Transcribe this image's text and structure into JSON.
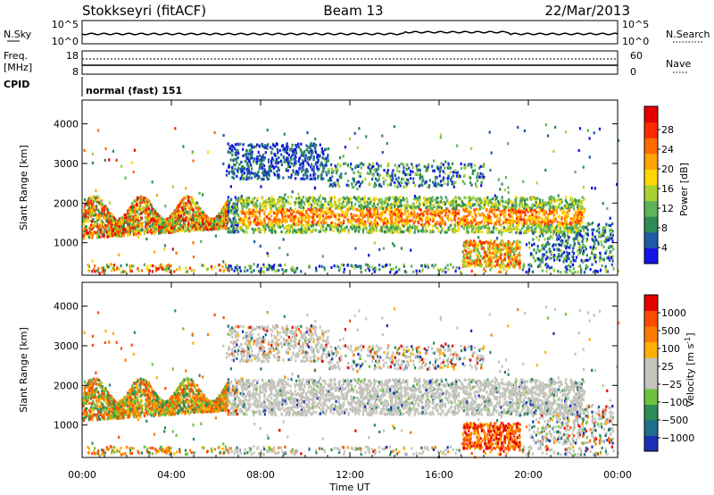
{
  "header": {
    "title": "Stokkseyri (fitACF)",
    "beam": "Beam 13",
    "date": "22/Mar/2013"
  },
  "side_labels": {
    "nsky": "N.Sky",
    "freq": "Freq.",
    "mhz": "[MHz]",
    "cpid": "CPID",
    "nsearch": "N.Search",
    "nave": "Nave"
  },
  "top_panels": {
    "noise_left_ticks": [
      "10^5",
      "10^0"
    ],
    "noise_right_ticks": [
      "10^5",
      "10^0"
    ],
    "freq_left_ticks": [
      "18",
      "8"
    ],
    "nave_right_ticks": [
      "60",
      "0"
    ],
    "cpid_text": "normal (fast) 151"
  },
  "chart_data": [
    {
      "type": "heatmap",
      "name": "Power",
      "xlabel": "Time UT",
      "ylabel": "Slant Range [km]",
      "x_ticks": [
        "00:00",
        "04:00",
        "08:00",
        "12:00",
        "16:00",
        "20:00",
        "00:00"
      ],
      "xlim_hours": [
        0,
        24
      ],
      "y_ticks": [
        1000,
        2000,
        3000,
        4000
      ],
      "ylim": [
        180,
        4600
      ],
      "colorbar": {
        "label": "Power [dB]",
        "ticks": [
          "4",
          "8",
          "12",
          "16",
          "20",
          "24",
          "28"
        ],
        "colors": [
          "#1414e6",
          "#1e5aa8",
          "#2e8b57",
          "#5fb35a",
          "#a8d232",
          "#ffd700",
          "#ffa500",
          "#ff6a00",
          "#ff2a00",
          "#e60000"
        ]
      }
    },
    {
      "type": "heatmap",
      "name": "Velocity",
      "xlabel": "Time UT",
      "ylabel": "Slant Range [km]",
      "x_ticks": [
        "00:00",
        "04:00",
        "08:00",
        "12:00",
        "16:00",
        "20:00",
        "00:00"
      ],
      "xlim_hours": [
        0,
        24
      ],
      "y_ticks": [
        1000,
        2000,
        3000,
        4000
      ],
      "ylim": [
        180,
        4600
      ],
      "colorbar": {
        "label": "Velocity [m s^-1]",
        "ticks": [
          "1000",
          "500",
          "100",
          "25",
          "−25",
          "−100",
          "−500",
          "−1000"
        ],
        "colors": [
          "#1a2fb5",
          "#1f6e8c",
          "#2e8b57",
          "#6fc23c",
          "#c4c4bc",
          "#c4c4bc",
          "#ffb000",
          "#ff7a00",
          "#ff4a00",
          "#e60000"
        ]
      }
    }
  ],
  "colors": {
    "ground_scatter": "#c4c4bc"
  }
}
